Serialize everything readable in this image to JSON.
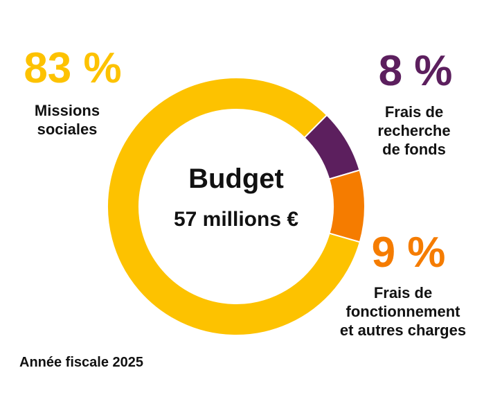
{
  "chart_data": {
    "type": "donut",
    "categories": [
      "Missions\nsociales",
      "Frais de\nrecherche\nde fonds",
      "Frais de\nfonctionnement\net autres charges"
    ],
    "values": [
      83,
      8,
      9
    ],
    "value_labels": [
      "83 %",
      "8 %",
      "9 %"
    ],
    "colors": [
      "#fdc200",
      "#5c1f5e",
      "#f57c00"
    ],
    "center_title": "Budget",
    "center_subtitle": "57 millions €",
    "footnote": "Année fiscale 2025"
  }
}
